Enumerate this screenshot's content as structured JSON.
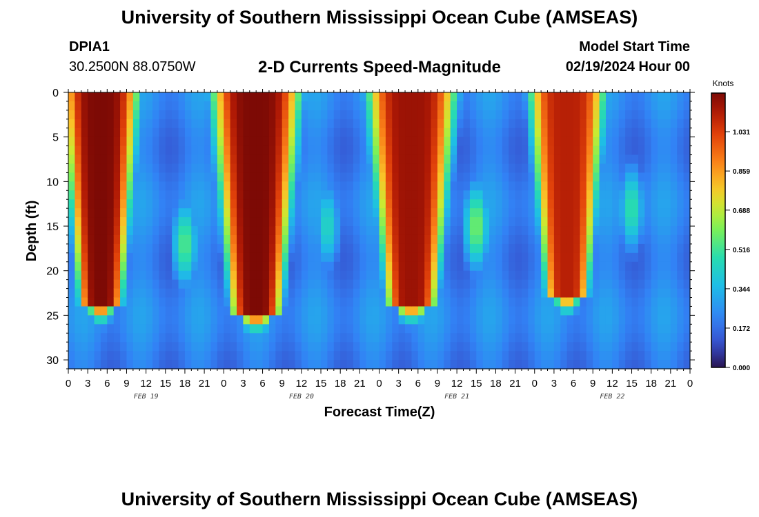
{
  "header": {
    "title": "University of Southern Mississippi Ocean Cube (AMSEAS)",
    "station": "DPIA1",
    "coords": "30.2500N  88.0750W",
    "subtitle": "2-D Currents Speed-Magnitude",
    "model_label": "Model Start Time",
    "model_date": "02/19/2024 Hour 00"
  },
  "footer": {
    "title": "University of Southern Mississippi Ocean Cube (AMSEAS)"
  },
  "chart_data": {
    "type": "heatmap",
    "xlabel": "Forecast Time(Z)",
    "ylabel": "Depth (ft)",
    "x_range_hours": [
      0,
      96
    ],
    "x_tick_labels": [
      "0",
      "3",
      "6",
      "9",
      "12",
      "15",
      "18",
      "21",
      "0",
      "3",
      "6",
      "9",
      "12",
      "15",
      "18",
      "21",
      "0",
      "3",
      "6",
      "9",
      "12",
      "15",
      "18",
      "21",
      "0",
      "3",
      "6",
      "9",
      "12",
      "15",
      "18",
      "21",
      "0"
    ],
    "x_tick_step_hours": 3,
    "date_labels": [
      {
        "text": "FEB 19",
        "hour": 12
      },
      {
        "text": "FEB 20",
        "hour": 36
      },
      {
        "text": "FEB 21",
        "hour": 60
      },
      {
        "text": "FEB 22",
        "hour": 84
      }
    ],
    "y_range_ft": [
      0,
      31
    ],
    "y_ticks": [
      0,
      5,
      10,
      15,
      20,
      25,
      30
    ],
    "y_inverted": true,
    "colorbar": {
      "unit": "Knots",
      "min": 0.0,
      "max": 1.2,
      "ticks": [
        "0.000",
        "0.172",
        "0.344",
        "0.516",
        "0.688",
        "0.859",
        "1.031"
      ]
    },
    "strong_flow_events": [
      {
        "center_hour": 5,
        "width_hours": 6,
        "peak_knots": 1.2,
        "max_depth_ft": 24
      },
      {
        "center_hour": 29,
        "width_hours": 7,
        "peak_knots": 1.2,
        "max_depth_ft": 25
      },
      {
        "center_hour": 53,
        "width_hours": 7,
        "peak_knots": 1.15,
        "max_depth_ft": 24
      },
      {
        "center_hour": 77,
        "width_hours": 6,
        "peak_knots": 1.1,
        "max_depth_ft": 23
      }
    ],
    "mid_depth_events": [
      {
        "center_hour": 18,
        "depth_ft": 17,
        "peak_knots": 0.55
      },
      {
        "center_hour": 40,
        "depth_ft": 15,
        "peak_knots": 0.45
      },
      {
        "center_hour": 63,
        "depth_ft": 15,
        "peak_knots": 0.6
      },
      {
        "center_hour": 87,
        "depth_ft": 13,
        "peak_knots": 0.5
      }
    ],
    "grid": false
  }
}
